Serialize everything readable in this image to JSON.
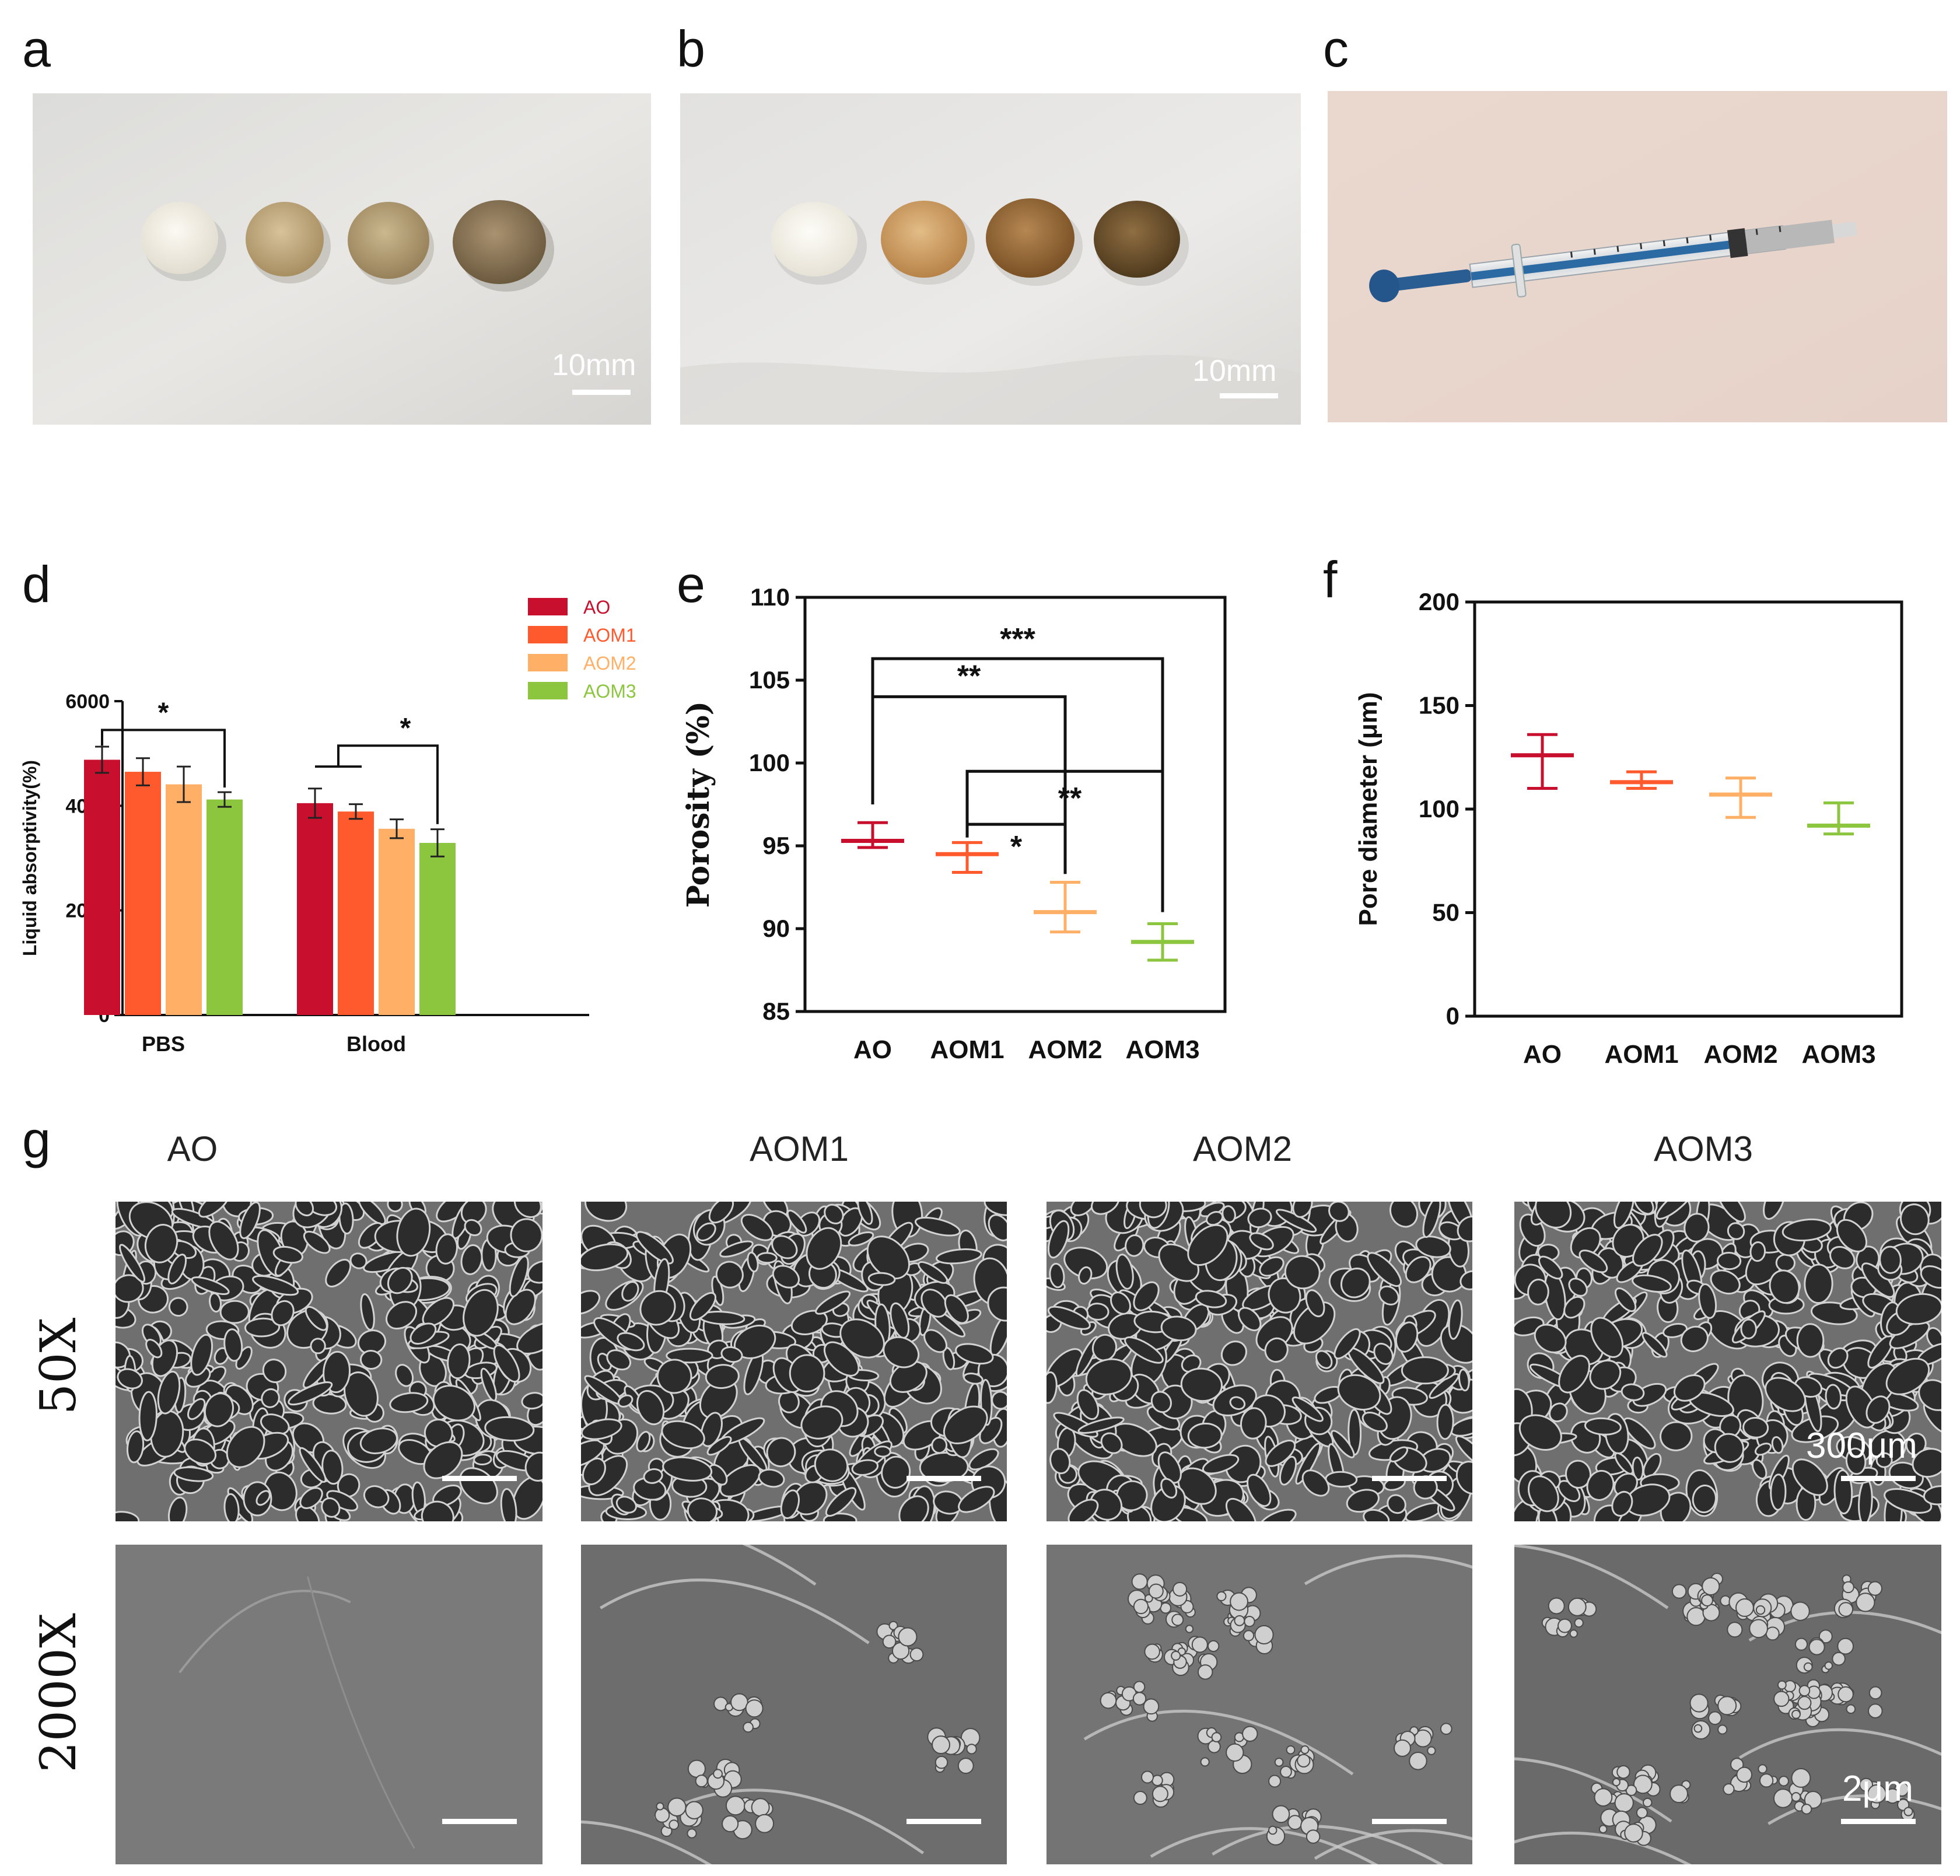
{
  "panels": {
    "a": {
      "letter": "a",
      "scale_label": "10mm"
    },
    "b": {
      "letter": "b",
      "scale_label": "10mm"
    },
    "c": {
      "letter": "c"
    },
    "d": {
      "letter": "d"
    },
    "e": {
      "letter": "e"
    },
    "f": {
      "letter": "f"
    },
    "g": {
      "letter": "g",
      "columns": [
        "AO",
        "AOM1",
        "AOM2",
        "AOM3"
      ],
      "rows": [
        "50X",
        "2000X"
      ],
      "scale_label_50x": "300μm",
      "scale_label_2000x": "2μm"
    }
  },
  "colors": {
    "AO": "#c8102e",
    "AOM1": "#ff5a2e",
    "AOM2": "#ffb066",
    "AOM3": "#8cc63f"
  },
  "chart_data": [
    {
      "panel": "d",
      "type": "bar",
      "categories": [
        "PBS",
        "Blood"
      ],
      "ylabel": "Liquid absorptivity(%)",
      "ylim": [
        0,
        6000
      ],
      "yticks": [
        0,
        2000,
        4000,
        6000
      ],
      "legend_position": "top-right",
      "series": [
        {
          "name": "AO",
          "values": [
            4880,
            4050
          ],
          "errors": [
            250,
            280
          ]
        },
        {
          "name": "AOM1",
          "values": [
            4650,
            3890
          ],
          "errors": [
            260,
            140
          ]
        },
        {
          "name": "AOM2",
          "values": [
            4410,
            3560
          ],
          "errors": [
            340,
            180
          ]
        },
        {
          "name": "AOM3",
          "values": [
            4120,
            3290
          ],
          "errors": [
            140,
            260
          ]
        }
      ],
      "significance": [
        {
          "label": "*",
          "from": "PBS AO",
          "to": "PBS AOM3"
        },
        {
          "label": "*",
          "from": "Blood AO-AOM1",
          "to": "Blood AOM3"
        }
      ]
    },
    {
      "panel": "e",
      "type": "scatter",
      "categories": [
        "AO",
        "AOM1",
        "AOM2",
        "AOM3"
      ],
      "ylabel": "Porosity (%)",
      "ylim": [
        85,
        110
      ],
      "yticks": [
        85,
        90,
        95,
        100,
        105,
        110
      ],
      "mean": [
        95.3,
        94.5,
        91.0,
        89.2
      ],
      "min": [
        94.9,
        93.4,
        89.8,
        88.1
      ],
      "max": [
        96.4,
        95.2,
        92.8,
        90.3
      ],
      "significance": [
        {
          "label": "***",
          "from": "AO",
          "to": "AOM3"
        },
        {
          "label": "**",
          "from": "AO",
          "to": "AOM2"
        },
        {
          "label": "**",
          "from": "AOM1",
          "to": "AOM3"
        },
        {
          "label": "*",
          "from": "AOM1",
          "to": "AOM2"
        }
      ]
    },
    {
      "panel": "f",
      "type": "scatter",
      "categories": [
        "AO",
        "AOM1",
        "AOM2",
        "AOM3"
      ],
      "ylabel": "Pore diameter (μm)",
      "ylim": [
        0,
        200
      ],
      "yticks": [
        0,
        50,
        100,
        150,
        200
      ],
      "mean": [
        126,
        113,
        107,
        92
      ],
      "min": [
        110,
        110,
        96,
        88
      ],
      "max": [
        136,
        118,
        115,
        103
      ]
    }
  ]
}
